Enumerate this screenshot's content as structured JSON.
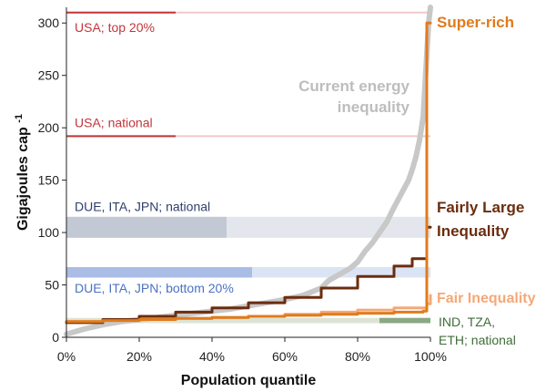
{
  "chart_data": {
    "type": "line",
    "xlabel": "Population quantile",
    "ylabel": "Gigajoules cap",
    "ylabel_superscript": "-1",
    "xlim": [
      0,
      100
    ],
    "ylim": [
      0,
      315
    ],
    "x_ticks": [
      0,
      20,
      40,
      60,
      80,
      100
    ],
    "x_tick_labels": [
      "0%",
      "20%",
      "40%",
      "60%",
      "80%",
      "100%"
    ],
    "y_ticks": [
      0,
      50,
      100,
      150,
      200,
      250,
      300
    ],
    "y_tick_labels": [
      "0",
      "50",
      "100",
      "150",
      "200",
      "250",
      "300"
    ],
    "grid": false,
    "series": [
      {
        "name": "Current energy inequality",
        "label_lines": [
          "Current energy",
          "inequality"
        ],
        "color": "#c8c8c8",
        "step": false,
        "x": [
          0,
          5,
          10,
          15,
          20,
          25,
          30,
          35,
          40,
          45,
          50,
          55,
          60,
          65,
          70,
          72,
          75,
          78,
          80,
          82,
          84,
          86,
          88,
          90,
          92,
          94,
          95,
          96,
          97,
          98,
          98.5,
          99,
          99.5,
          100
        ],
        "y": [
          3,
          8,
          12,
          15,
          17,
          19,
          21,
          23,
          25,
          27,
          30,
          33,
          36,
          40,
          47,
          54,
          60,
          66,
          72,
          82,
          90,
          100,
          110,
          124,
          137,
          150,
          160,
          172,
          188,
          210,
          240,
          270,
          300,
          315
        ]
      },
      {
        "name": "Fair Inequality",
        "color": "#f4a877",
        "step": true,
        "x": [
          0,
          10,
          20,
          30,
          40,
          50,
          60,
          70,
          80,
          90,
          99,
          100
        ],
        "y": [
          15,
          16,
          17,
          18,
          19,
          20,
          22,
          24,
          26,
          28,
          32,
          40
        ]
      },
      {
        "name": "Fairly Large Inequality",
        "label_lines": [
          "Fairly Large",
          "Inequality"
        ],
        "color": "#6b2d0f",
        "step": true,
        "x": [
          0,
          10,
          20,
          30,
          40,
          50,
          60,
          70,
          80,
          90,
          95,
          99,
          100
        ],
        "y": [
          14,
          17,
          20,
          24,
          28,
          33,
          38,
          47,
          58,
          68,
          75,
          105,
          105
        ]
      },
      {
        "name": "Super-rich",
        "color": "#e07b1c",
        "step": true,
        "x": [
          0,
          10,
          20,
          30,
          40,
          50,
          60,
          70,
          80,
          90,
          98,
          99,
          100
        ],
        "y": [
          15,
          16,
          17,
          18,
          19,
          20,
          21,
          22,
          23,
          24,
          25,
          300,
          300
        ]
      }
    ],
    "reference_bands": [
      {
        "name": "USA; top 20%",
        "value": 310,
        "solid_to": 30,
        "color": "#c0373a",
        "faint": "#f2c8c9",
        "type": "line",
        "label_y": 296
      },
      {
        "name": "USA; national",
        "value": 192,
        "solid_to": 30,
        "color": "#c0373a",
        "faint": "#f2c8c9",
        "type": "line",
        "label_y": 205
      },
      {
        "name": "DUE, ITA, JPN; national",
        "value": 105,
        "half_height": 10,
        "solid_to": 44,
        "color": "#c2c8d4",
        "faint": "#e3e6ec",
        "type": "band",
        "label_y": 125,
        "text_color": "#2f3f6b"
      },
      {
        "name": "DUE, ITA, JPN; bottom 20%",
        "value": 62,
        "half_height": 5,
        "solid_to": 51,
        "color": "#a9bde6",
        "faint": "#dbe4f4",
        "type": "band",
        "label_y": 47,
        "text_color": "#4a72c4"
      },
      {
        "name": "IND, TZA, ETH; national",
        "value": 16,
        "half_height": 2.5,
        "solid_from": 86,
        "color": "#8aa882",
        "faint": "#dde3d4",
        "type": "band_right"
      }
    ],
    "annotations": {
      "ind_label_lines": [
        "IND, TZA,",
        "ETH; national"
      ],
      "ind_color": "#3f6d3a"
    }
  }
}
